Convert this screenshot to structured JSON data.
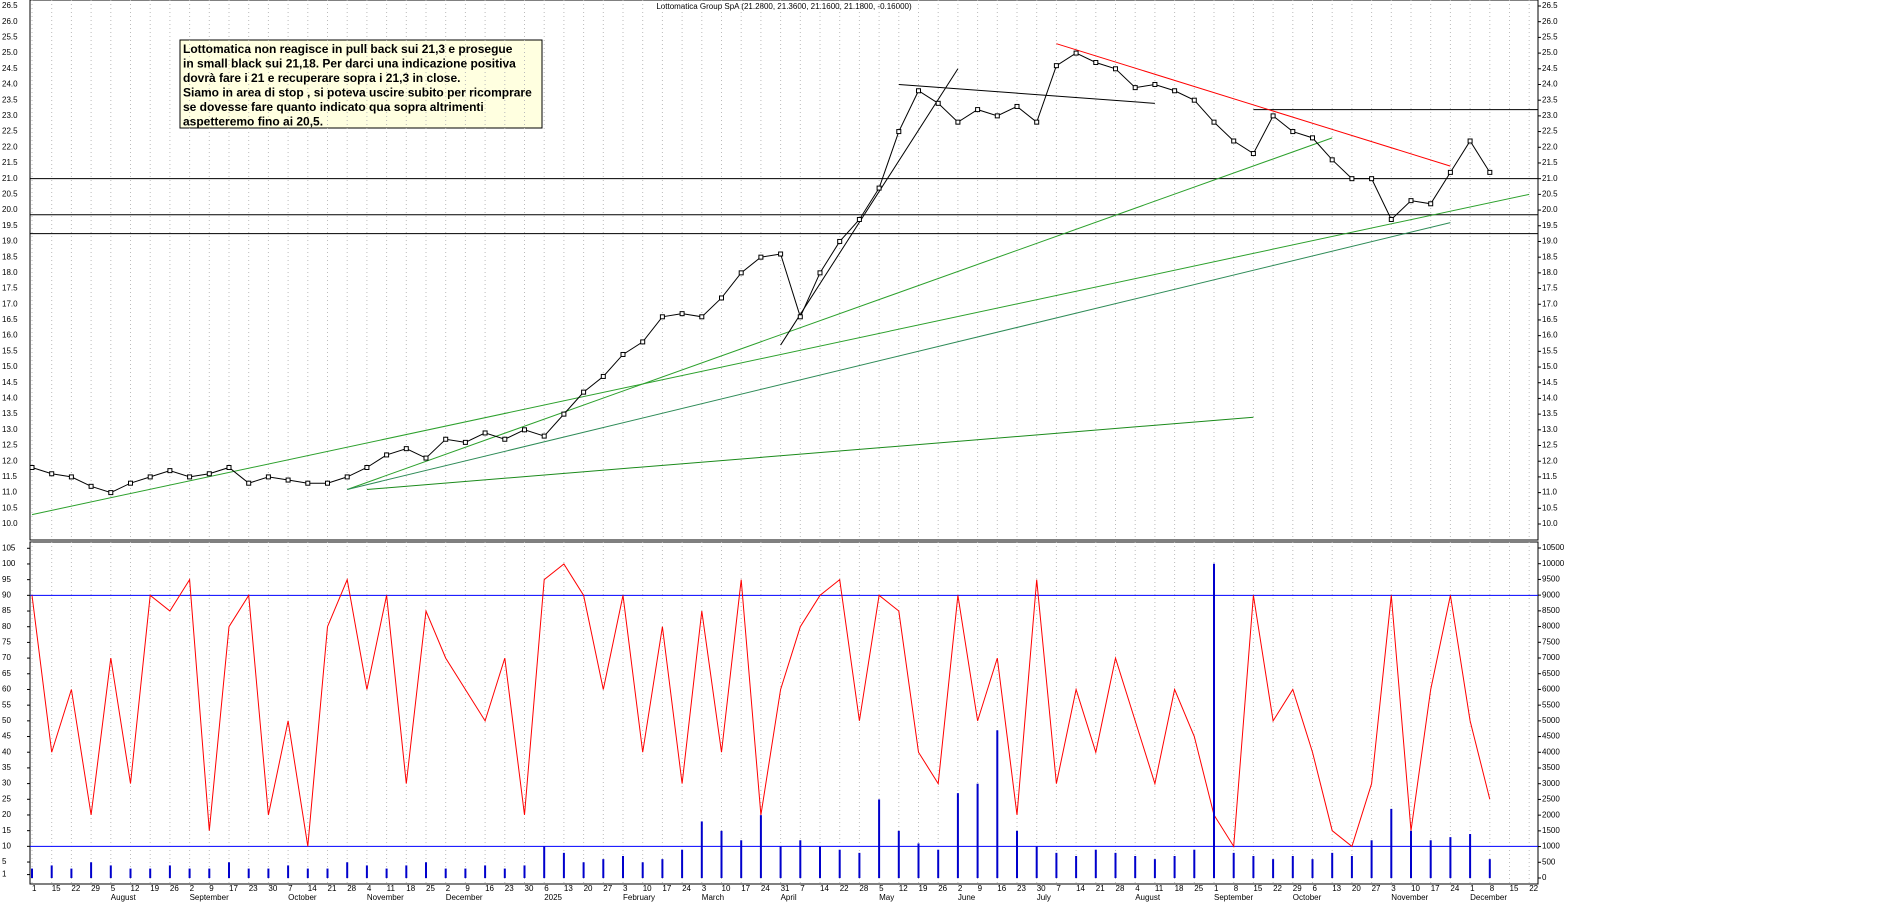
{
  "chart_data": [
    {
      "type": "line",
      "title": "Lottomatica Group SpA (21.2800, 21.3600, 21.1600, 21.1800, -0.16000)",
      "annotation": [
        "Lottomatica non reagisce in pull back sui 21,3 e prosegue",
        "in small black sui 21,18. Per darci una indicazione positiva",
        "dovrà fare i 21 e recuperare sopra i 21,3 in close.",
        "Siamo in area di stop , si poteva uscire subito per ricomprare",
        "se dovesse fare quanto indicato qua sopra altrimenti",
        "aspetteremo fino ai 20,5."
      ],
      "categories": [
        "1",
        "15",
        "22",
        "29",
        "5",
        "12",
        "19",
        "26",
        "2",
        "9",
        "17",
        "23",
        "30",
        "7",
        "14",
        "21",
        "28",
        "4",
        "11",
        "18",
        "25",
        "2",
        "9",
        "16",
        "23",
        "30",
        "6",
        "13",
        "20",
        "27",
        "3",
        "10",
        "17",
        "24",
        "3",
        "10",
        "17",
        "24",
        "31",
        "7",
        "14",
        "22",
        "28",
        "5",
        "12",
        "19",
        "26",
        "2",
        "9",
        "16",
        "23",
        "30",
        "7",
        "14",
        "21",
        "28",
        "4",
        "11",
        "18",
        "25",
        "1",
        "8",
        "15",
        "22",
        "29",
        "6",
        "13",
        "20",
        "27",
        "3",
        "10",
        "17",
        "24",
        "1",
        "8",
        "15",
        "22"
      ],
      "months": [
        null,
        null,
        null,
        null,
        "August",
        null,
        null,
        null,
        "September",
        null,
        null,
        null,
        null,
        "October",
        null,
        null,
        null,
        "November",
        null,
        null,
        null,
        "December",
        null,
        null,
        null,
        null,
        "2025",
        null,
        null,
        null,
        "February",
        null,
        null,
        null,
        "March",
        null,
        null,
        null,
        "April",
        null,
        null,
        null,
        null,
        "May",
        null,
        null,
        null,
        "June",
        null,
        null,
        null,
        "July",
        null,
        null,
        null,
        null,
        "August",
        null,
        null,
        null,
        "September",
        null,
        null,
        null,
        "October",
        null,
        null,
        null,
        null,
        "November",
        null,
        null,
        null,
        "December",
        null,
        null,
        null
      ],
      "series": [
        {
          "name": "Close",
          "color": "#000000",
          "values": [
            11.8,
            11.6,
            11.5,
            11.2,
            11.0,
            11.3,
            11.5,
            11.7,
            11.5,
            11.6,
            11.8,
            11.3,
            11.5,
            11.4,
            11.3,
            11.3,
            11.5,
            11.8,
            12.2,
            12.4,
            12.1,
            12.7,
            12.6,
            12.9,
            12.7,
            13.0,
            12.8,
            13.5,
            14.2,
            14.7,
            15.4,
            15.8,
            16.6,
            16.7,
            16.6,
            17.2,
            18.0,
            18.5,
            18.6,
            16.6,
            18.0,
            19.0,
            19.7,
            20.7,
            22.5,
            23.8,
            23.4,
            22.8,
            23.2,
            23.0,
            23.3,
            22.8,
            24.6,
            25.0,
            24.7,
            24.5,
            23.9,
            24.0,
            23.8,
            23.5,
            22.8,
            22.2,
            21.8,
            23.0,
            22.5,
            22.3,
            21.6,
            21.0,
            21.0,
            19.7,
            20.3,
            20.2,
            21.2,
            22.2,
            21.2,
            null,
            null
          ]
        }
      ],
      "levels": [
        21.0,
        19.85,
        19.25,
        23.2
      ],
      "trendlines": [
        {
          "color": "#2ca02c",
          "points": [
            [
              0,
              10.3
            ],
            [
              76,
              20.5
            ]
          ]
        },
        {
          "color": "#2ca02c",
          "points": [
            [
              16,
              11.1
            ],
            [
              66,
              22.3
            ]
          ]
        },
        {
          "color": "#2e8b57",
          "points": [
            [
              16,
              11.1
            ],
            [
              72,
              19.6
            ]
          ]
        },
        {
          "color": "#1a8a1a",
          "points": [
            [
              17,
              11.1
            ],
            [
              62,
              13.4
            ]
          ]
        },
        {
          "color": "#000000",
          "points": [
            [
              38,
              15.7
            ],
            [
              47,
              24.5
            ]
          ]
        },
        {
          "color": "#000000",
          "points": [
            [
              44,
              24.0
            ],
            [
              57,
              23.4
            ]
          ]
        },
        {
          "color": "#ff0000",
          "points": [
            [
              52,
              25.3
            ],
            [
              72,
              21.4
            ]
          ]
        }
      ],
      "ylim": [
        10.0,
        26.5
      ],
      "yticks": [
        {
          "value": 10.0,
          "label": "10.0"
        },
        {
          "value": 10.5,
          "label": "10.5"
        },
        {
          "value": 11.0,
          "label": "11.0"
        },
        {
          "value": 11.5,
          "label": "11.5"
        },
        {
          "value": 12.0,
          "label": "12.0"
        },
        {
          "value": 12.5,
          "label": "12.5"
        },
        {
          "value": 13.0,
          "label": "13.0"
        },
        {
          "value": 13.5,
          "label": "13.5"
        },
        {
          "value": 14.0,
          "label": "14.0"
        },
        {
          "value": 14.5,
          "label": "14.5"
        },
        {
          "value": 15.0,
          "label": "15.0"
        },
        {
          "value": 15.5,
          "label": "15.5"
        },
        {
          "value": 16.0,
          "label": "16.0"
        },
        {
          "value": 16.5,
          "label": "16.5"
        },
        {
          "value": 17.0,
          "label": "17.0"
        },
        {
          "value": 17.5,
          "label": "17.5"
        },
        {
          "value": 18.0,
          "label": "18.0"
        },
        {
          "value": 18.5,
          "label": "18.5"
        },
        {
          "value": 19.0,
          "label": "19.0"
        },
        {
          "value": 19.5,
          "label": "19.5"
        },
        {
          "value": 20.0,
          "label": "20.0"
        },
        {
          "value": 20.5,
          "label": "20.5"
        },
        {
          "value": 21.0,
          "label": "21.0"
        },
        {
          "value": 21.5,
          "label": "21.5"
        },
        {
          "value": 22.0,
          "label": "22.0"
        },
        {
          "value": 22.5,
          "label": "22.5"
        },
        {
          "value": 23.0,
          "label": "23.0"
        },
        {
          "value": 23.5,
          "label": "23.5"
        },
        {
          "value": 24.0,
          "label": "24.0"
        },
        {
          "value": 24.5,
          "label": "24.5"
        },
        {
          "value": 25.0,
          "label": "25.0"
        },
        {
          "value": 25.5,
          "label": "25.5"
        },
        {
          "value": 26.0,
          "label": "26.0"
        },
        {
          "value": 26.5,
          "label": "26.5"
        }
      ]
    },
    {
      "type": "line",
      "series": [
        {
          "name": "Oscillator",
          "color": "#ff0000",
          "values": [
            90,
            40,
            60,
            20,
            70,
            30,
            90,
            85,
            95,
            15,
            80,
            90,
            20,
            50,
            10,
            80,
            95,
            60,
            90,
            30,
            85,
            70,
            60,
            50,
            70,
            20,
            95,
            100,
            90,
            60,
            90,
            40,
            80,
            30,
            85,
            40,
            95,
            20,
            60,
            80,
            90,
            95,
            50,
            90,
            85,
            40,
            30,
            90,
            50,
            70,
            20,
            95,
            30,
            60,
            40,
            70,
            50,
            30,
            60,
            45,
            20,
            10,
            90,
            50,
            60,
            40,
            15,
            10,
            30,
            90,
            15,
            60,
            90,
            50,
            25,
            null,
            null
          ]
        },
        {
          "name": "Volume",
          "color": "#0000cc",
          "axis": "y2",
          "values": [
            300,
            400,
            300,
            500,
            400,
            300,
            300,
            400,
            300,
            300,
            500,
            300,
            300,
            400,
            300,
            300,
            500,
            400,
            300,
            400,
            500,
            300,
            300,
            400,
            300,
            400,
            1000,
            800,
            500,
            600,
            700,
            500,
            600,
            900,
            1800,
            1500,
            1200,
            2000,
            1000,
            1200,
            1000,
            900,
            800,
            2500,
            1500,
            1100,
            900,
            2700,
            3000,
            4700,
            1500,
            1000,
            800,
            700,
            900,
            800,
            700,
            600,
            700,
            900,
            10000,
            800,
            700,
            600,
            700,
            600,
            800,
            700,
            1200,
            2200,
            1500,
            1200,
            1300,
            1400,
            600,
            null,
            null
          ]
        }
      ],
      "levels": [
        90,
        10
      ],
      "ylim": [
        -2,
        107
      ],
      "yticks": [
        1,
        5,
        10,
        15,
        20,
        25,
        30,
        35,
        40,
        45,
        50,
        55,
        60,
        65,
        70,
        75,
        80,
        85,
        90,
        95,
        100,
        105
      ],
      "y2lim": [
        0,
        10500
      ],
      "y2ticks": [
        0,
        500,
        1000,
        1500,
        2000,
        2500,
        3000,
        3500,
        4000,
        4500,
        5000,
        5500,
        6000,
        6500,
        7000,
        7500,
        8000,
        8500,
        9000,
        9500,
        10000,
        10500
      ]
    }
  ]
}
